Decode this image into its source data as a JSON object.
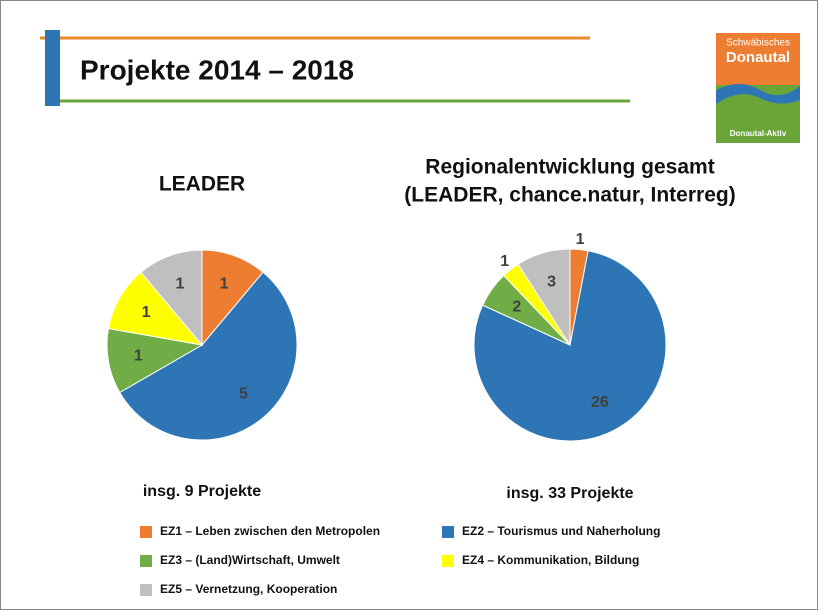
{
  "title": "Projekte 2014 – 2018",
  "logo": {
    "line1": "Schwäbisches",
    "line2": "Donautal",
    "footer": "Donautal-Aktiv"
  },
  "legend": [
    {
      "name": "EZ1 – Leben zwischen den Metropolen",
      "color": "#ed7d31"
    },
    {
      "name": "EZ2 – Tourismus und Naherholung",
      "color": "#2e75b6"
    },
    {
      "name": "EZ3 – (Land)Wirtschaft, Umwelt",
      "color": "#70ad47"
    },
    {
      "name": "EZ4 – Kommunikation, Bildung",
      "color": "#ffff00"
    },
    {
      "name": "EZ5 – Vernetzung, Kooperation",
      "color": "#bfbfbf"
    }
  ],
  "chart_data": [
    {
      "type": "pie",
      "title": [
        "LEADER"
      ],
      "values": [
        1,
        5,
        1,
        1,
        1
      ],
      "caption": "insg. 9 Projekte"
    },
    {
      "type": "pie",
      "title": [
        "Regionalentwicklung gesamt",
        "(LEADER, chance.natur, Interreg)"
      ],
      "values": [
        1,
        26,
        2,
        1,
        3
      ],
      "caption": "insg. 33 Projekte"
    }
  ]
}
